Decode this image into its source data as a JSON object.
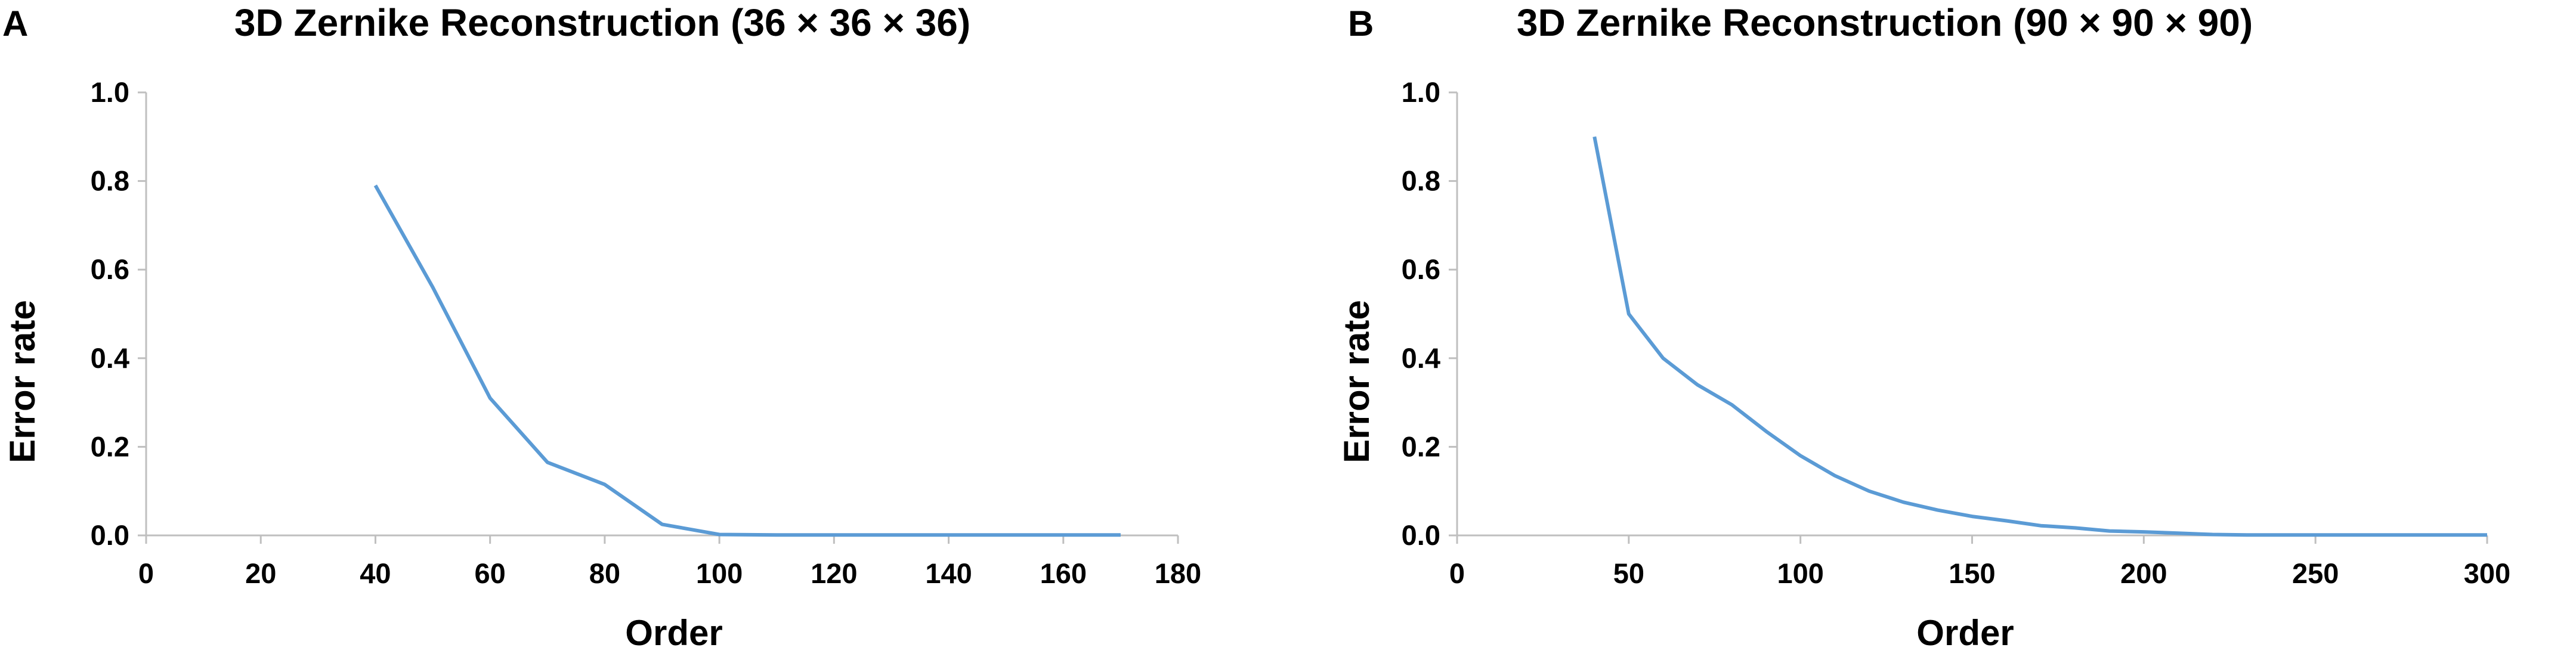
{
  "chart_data": [
    {
      "panel_label": "A",
      "type": "line",
      "title": "3D Zernike Reconstruction (36 × 36 × 36)",
      "xlabel": "Order",
      "ylabel": "Error rate",
      "xlim": [
        0,
        180
      ],
      "ylim": [
        0,
        1.0
      ],
      "xticks": [
        "0",
        "20",
        "40",
        "60",
        "80",
        "100",
        "120",
        "140",
        "160",
        "180"
      ],
      "yticks": [
        "0.0",
        "0.2",
        "0.4",
        "0.6",
        "0.8",
        "1.0"
      ],
      "grid": false,
      "color": "#5b9bd5",
      "x": [
        40,
        50,
        60,
        70,
        80,
        90,
        100,
        110,
        120,
        130,
        140,
        150,
        160,
        170
      ],
      "y": [
        0.79,
        0.56,
        0.31,
        0.165,
        0.115,
        0.025,
        0.002,
        0.001,
        0.001,
        0.001,
        0.001,
        0.001,
        0.001,
        0.001
      ]
    },
    {
      "panel_label": "B",
      "type": "line",
      "title": "3D Zernike Reconstruction (90 × 90 × 90)",
      "xlabel": "Order",
      "ylabel": "Error rate",
      "xlim": [
        0,
        300
      ],
      "ylim": [
        0,
        1.0
      ],
      "xticks": [
        "0",
        "50",
        "100",
        "150",
        "200",
        "250",
        "300"
      ],
      "yticks": [
        "0.0",
        "0.2",
        "0.4",
        "0.6",
        "0.8",
        "1.0"
      ],
      "grid": false,
      "color": "#5b9bd5",
      "x": [
        40,
        50,
        60,
        70,
        80,
        90,
        100,
        110,
        120,
        130,
        140,
        150,
        160,
        170,
        180,
        190,
        200,
        210,
        220,
        230,
        240,
        250,
        260,
        270,
        280,
        290,
        300
      ],
      "y": [
        0.9,
        0.5,
        0.4,
        0.34,
        0.295,
        0.235,
        0.18,
        0.135,
        0.1,
        0.075,
        0.057,
        0.043,
        0.033,
        0.022,
        0.017,
        0.01,
        0.008,
        0.005,
        0.002,
        0.001,
        0.001,
        0.001,
        0.001,
        0.001,
        0.001,
        0.001,
        0.001
      ]
    }
  ]
}
